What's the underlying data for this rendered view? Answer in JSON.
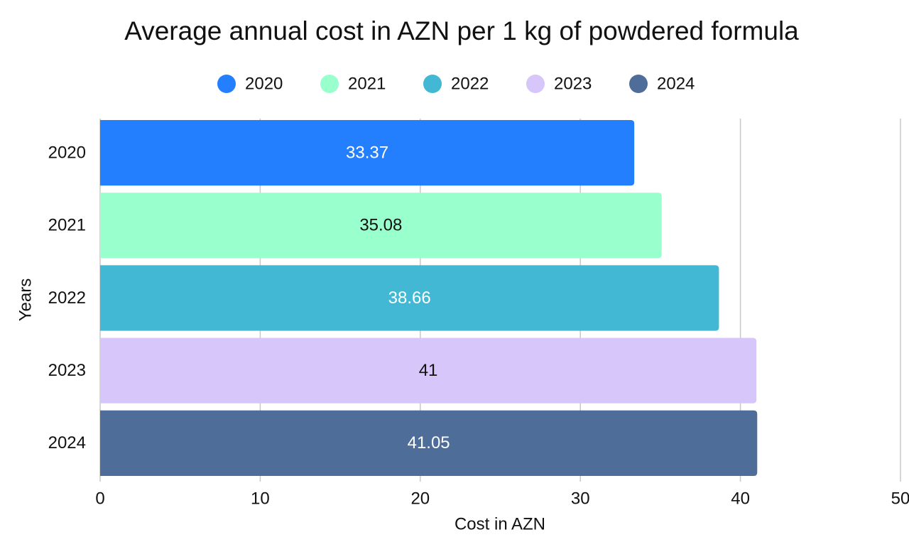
{
  "chart_data": {
    "type": "hbar",
    "title": "Average annual cost in AZN per 1 kg of powdered formula",
    "x_label": "Cost in AZN",
    "y_label": "Years",
    "categories": [
      "2020",
      "2021",
      "2022",
      "2023",
      "2024"
    ],
    "values": [
      33.37,
      35.08,
      38.66,
      41,
      41.05
    ],
    "colors": [
      "#237ffd",
      "#99ffcc",
      "#42b8d5",
      "#d6c6fa",
      "#4f6d99"
    ],
    "xlim": [
      0,
      50
    ],
    "xticks": [
      0,
      10,
      20,
      30,
      40,
      50
    ],
    "grid": true,
    "legend": "top"
  }
}
